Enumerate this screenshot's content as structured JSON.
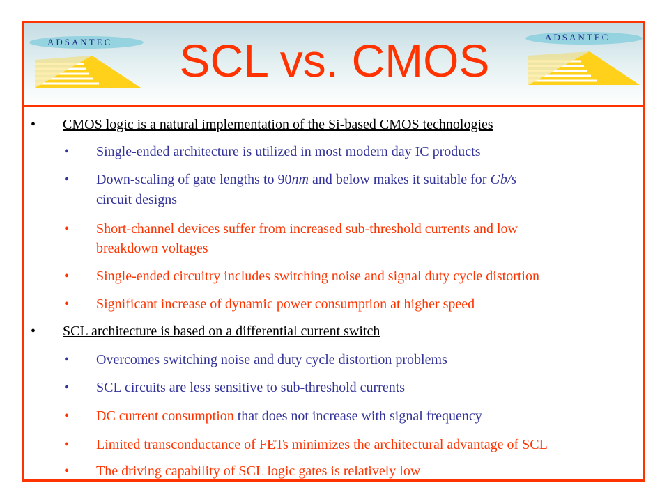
{
  "slide": {
    "title": "SCL vs. CMOS",
    "logo_text": "ADSANTEC",
    "colors": {
      "accent": "#ff3300",
      "blue": "#333399",
      "black": "#000000"
    }
  },
  "bullets": [
    {
      "level": 1,
      "marker": "•",
      "text": "CMOS logic is a natural implementation of the Si-based CMOS technologies"
    },
    {
      "level": 2,
      "marker": "•",
      "text": "Single-ended architecture is utilized in most modern day IC products"
    },
    {
      "level": 2,
      "marker": "•",
      "line1_a": "Down-scaling of gate lengths to 90",
      "line1_unit": "nm",
      "line1_b": " and below makes it suitable for ",
      "line1_unit2": "Gb/s",
      "line2": "circuit designs"
    },
    {
      "level": 2,
      "marker": "•",
      "line1": "Short-channel devices suffer from increased sub-threshold currents and low",
      "line2": "breakdown voltages"
    },
    {
      "level": 2,
      "marker": "•",
      "text": "Single-ended circuitry includes switching noise and signal duty cycle distortion"
    },
    {
      "level": 2,
      "marker": "•",
      "text": "Significant increase of dynamic power consumption at higher speed"
    },
    {
      "level": 1,
      "marker": "•",
      "text": "SCL architecture is based on a differential current switch"
    },
    {
      "level": 2,
      "marker": "•",
      "text": "Overcomes switching noise and duty cycle distortion problems"
    },
    {
      "level": 2,
      "marker": "•",
      "text": "SCL circuits are less sensitive to sub-threshold currents"
    },
    {
      "level": 2,
      "marker": "•",
      "text_a": "DC current consumption",
      "text_b": " that does not increase with signal frequency"
    },
    {
      "level": 2,
      "marker": "•",
      "text": "Limited transconductance of FETs minimizes the architectural advantage of SCL"
    },
    {
      "level": 2,
      "marker": "•",
      "text": "The driving capability of SCL logic gates is relatively low"
    }
  ]
}
